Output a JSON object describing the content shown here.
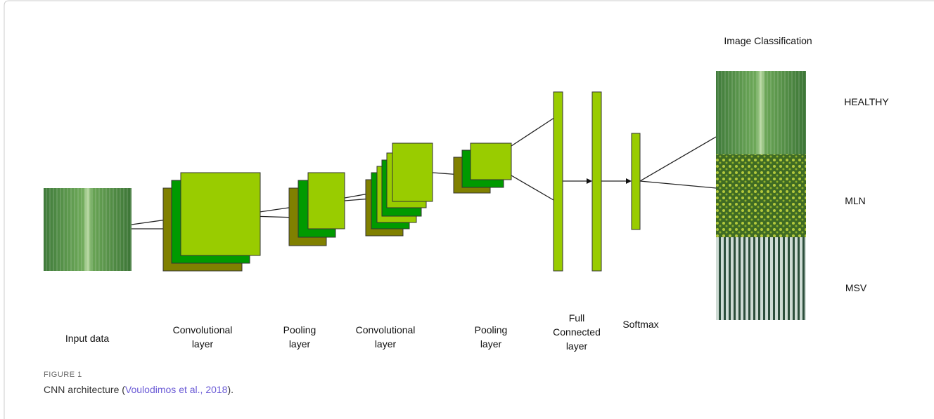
{
  "diagram": {
    "heading": "Image Classification",
    "stage_labels": [
      [
        "Input data"
      ],
      [
        "Convolutional",
        "layer"
      ],
      [
        "Pooling",
        "layer"
      ],
      [
        "Convolutional",
        "layer"
      ],
      [
        "Pooling",
        "layer"
      ],
      [
        "Full",
        "Connected",
        "layer"
      ],
      [
        "Softmax"
      ]
    ],
    "classes": [
      "HEALTHY",
      "MLN",
      "MSV"
    ]
  },
  "caption": {
    "label": "FIGURE 1",
    "text_before": "CNN architecture (",
    "link": "Voulodimos et al., 2018",
    "text_after": ")."
  }
}
